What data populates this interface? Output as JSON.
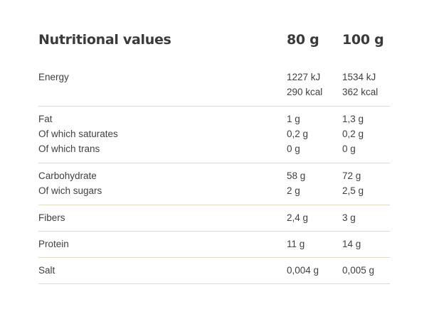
{
  "header": {
    "title": "Nutritional values",
    "col1": "80 g",
    "col2": "100 g"
  },
  "groups": [
    {
      "rows": [
        {
          "label": "Energy",
          "v80": "1227 kJ",
          "v100": "1534 kJ"
        },
        {
          "label": "",
          "v80": "290 kcal",
          "v100": "362 kcal"
        }
      ]
    },
    {
      "rows": [
        {
          "label": "Fat",
          "v80": "1 g",
          "v100": "1,3 g"
        },
        {
          "label": "Of which saturates",
          "v80": "0,2 g",
          "v100": "0,2 g"
        },
        {
          "label": "Of which trans",
          "v80": "0 g",
          "v100": "0 g"
        }
      ]
    },
    {
      "rows": [
        {
          "label": "Carbohydrate",
          "v80": "58 g",
          "v100": "72 g"
        },
        {
          "label": "Of wich sugars",
          "v80": "2 g",
          "v100": "2,5 g"
        }
      ]
    },
    {
      "rows": [
        {
          "label": "Fibers",
          "v80": "2,4 g",
          "v100": "3 g"
        }
      ]
    },
    {
      "rows": [
        {
          "label": "Protein",
          "v80": "11 g",
          "v100": "14 g"
        }
      ]
    },
    {
      "rows": [
        {
          "label": "Salt",
          "v80": "0,004 g",
          "v100": "0,005 g"
        }
      ]
    }
  ],
  "colors": {
    "text": "#3f3f3f",
    "divider": "#e2dcc7",
    "background": "#ffffff"
  }
}
